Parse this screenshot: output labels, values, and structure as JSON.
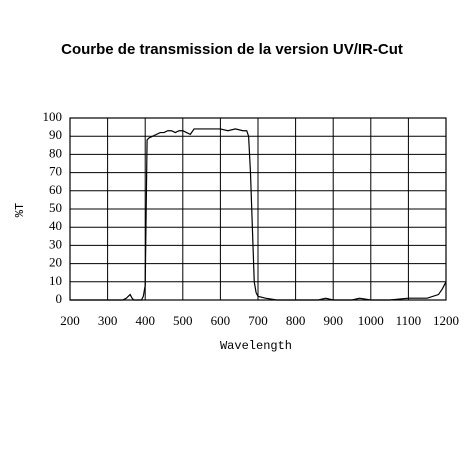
{
  "chart_data": {
    "type": "line",
    "title": "Courbe de transmission de la version UV/IR-Cut",
    "x_label": "Wavelength",
    "y_label": "%T",
    "x": [
      200,
      340,
      350,
      355,
      360,
      365,
      370,
      390,
      395,
      400,
      402,
      405,
      410,
      420,
      430,
      440,
      450,
      460,
      470,
      480,
      490,
      500,
      510,
      520,
      530,
      540,
      560,
      580,
      600,
      620,
      640,
      660,
      670,
      675,
      680,
      685,
      690,
      695,
      700,
      720,
      750,
      800,
      860,
      880,
      900,
      950,
      970,
      1000,
      1050,
      1100,
      1150,
      1180,
      1190,
      1200
    ],
    "series": [
      {
        "color": "#000000",
        "values": [
          0,
          0,
          1,
          2,
          3,
          1,
          0,
          0,
          2,
          8,
          40,
          88,
          89,
          90,
          91,
          92,
          92,
          93,
          93,
          92,
          93,
          93,
          92,
          91,
          94,
          94,
          94,
          94,
          94,
          93,
          94,
          93,
          93,
          90,
          70,
          40,
          10,
          4,
          2,
          1,
          0,
          0,
          0,
          1,
          0,
          0,
          1,
          0,
          0,
          1,
          1,
          3,
          6,
          10
        ]
      }
    ],
    "xlim": [
      200,
      1200
    ],
    "xticks": [
      200,
      300,
      400,
      500,
      600,
      700,
      800,
      900,
      1000,
      1100,
      1200
    ],
    "ylim": [
      0,
      100
    ],
    "yticks": [
      0,
      10,
      20,
      30,
      40,
      50,
      60,
      70,
      80,
      90,
      100
    ],
    "grid": true
  }
}
